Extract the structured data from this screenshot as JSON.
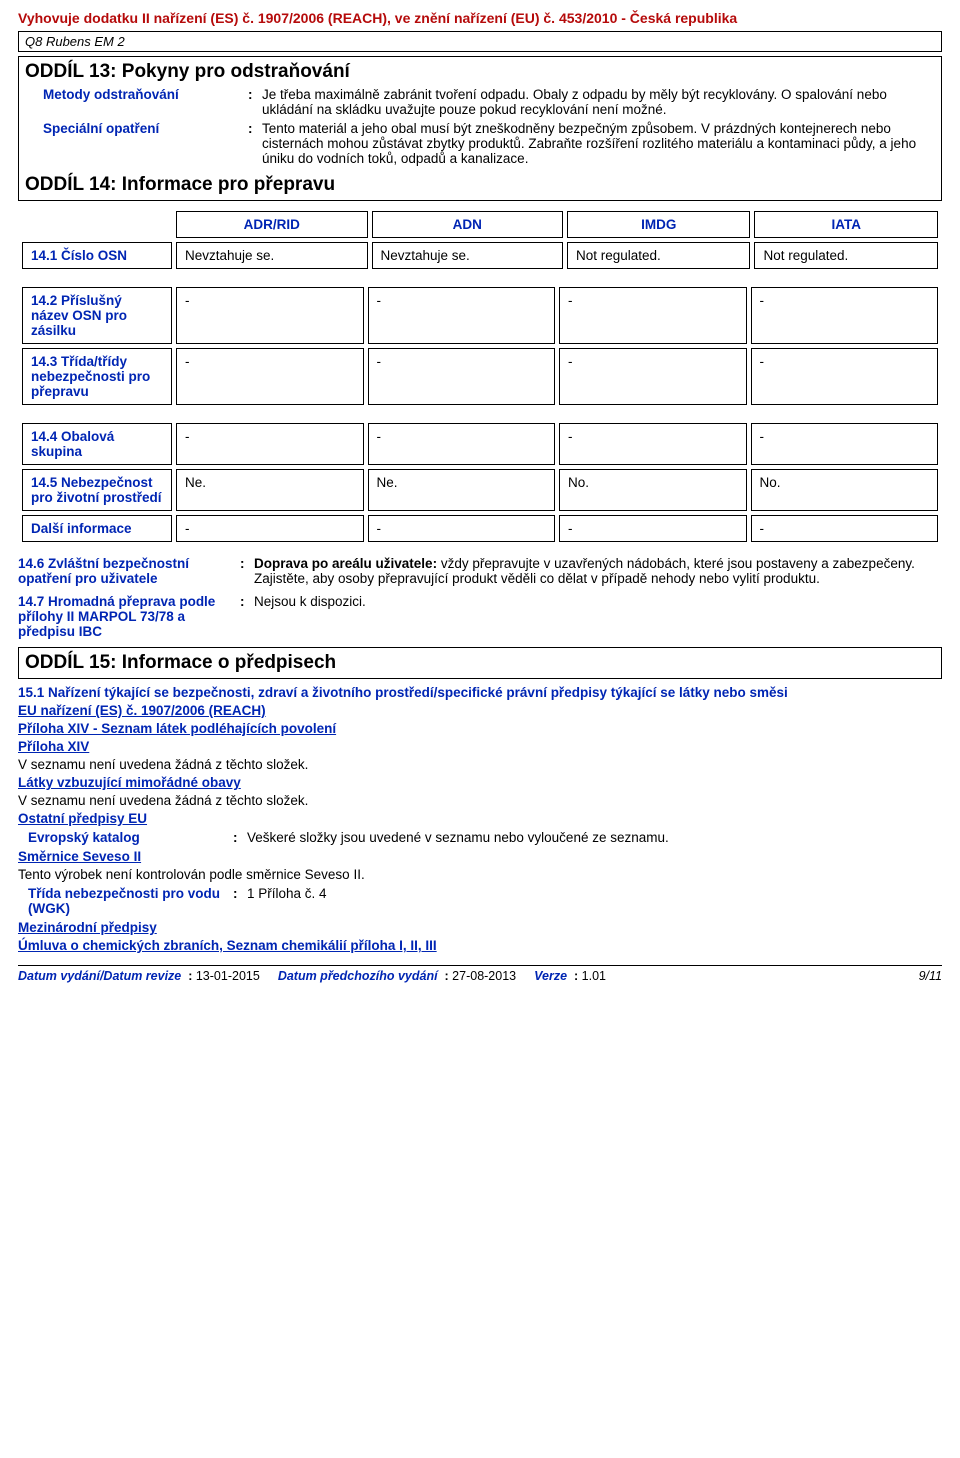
{
  "header": "Vyhovuje dodatku II nařízení (ES) č. 1907/2006 (REACH), ve znění nařízení (EU) č. 453/2010 - Česká republika",
  "product": "Q8 Rubens EM 2",
  "section13": {
    "title": "ODDÍL 13: Pokyny pro odstraňování",
    "rows": [
      {
        "label": "Metody odstraňování",
        "value": "Je třeba maximálně zabránit tvoření odpadu. Obaly z odpadu by měly být recyklovány. O spalování nebo ukládání na skládku uvažujte pouze pokud recyklování není možné."
      },
      {
        "label": "Speciální opatření",
        "value": "Tento materiál a jeho obal musí být zneškodněny bezpečným způsobem. V prázdných kontejnerech nebo cisternách mohou zůstávat zbytky produktů. Zabraňte rozšíření rozlitého materiálu a kontaminaci půdy, a jeho úniku do vodních toků, odpadů a kanalizace."
      }
    ]
  },
  "section14": {
    "title": "ODDÍL 14: Informace pro přepravu",
    "columns": [
      "ADR/RID",
      "ADN",
      "IMDG",
      "IATA"
    ],
    "rows1": [
      {
        "label": "14.1 Číslo OSN",
        "cells": [
          "Nevztahuje se.",
          "Nevztahuje se.",
          "Not regulated.",
          "Not regulated."
        ]
      }
    ],
    "rows2": [
      {
        "label": "14.2 Příslušný název OSN pro zásilku",
        "cells": [
          "-",
          "-",
          "-",
          "-"
        ]
      },
      {
        "label": "14.3 Třída/třídy nebezpečnosti pro přepravu",
        "cells": [
          "-",
          "-",
          "-",
          "-"
        ]
      }
    ],
    "rows3": [
      {
        "label": "14.4 Obalová skupina",
        "cells": [
          "-",
          "-",
          "-",
          "-"
        ]
      },
      {
        "label": "14.5 Nebezpečnost pro životní prostředí",
        "cells": [
          "Ne.",
          "Ne.",
          "No.",
          "No."
        ]
      },
      {
        "label": "Další informace",
        "cells": [
          "-",
          "-",
          "-",
          "-"
        ]
      }
    ],
    "extra": [
      {
        "label": "14.6 Zvláštní bezpečnostní opatření pro uživatele",
        "bold_prefix": "Doprava po areálu uživatele:",
        "value": " vždy přepravujte v uzavřených nádobách, které jsou postaveny a zabezpečeny. Zajistěte, aby osoby přepravující produkt věděli co dělat v případě nehody nebo vylití produktu."
      },
      {
        "label": "14.7 Hromadná přeprava podle přílohy II MARPOL 73/78 a předpisu IBC",
        "value": "Nejsou k dispozici."
      }
    ]
  },
  "section15": {
    "title": "ODDÍL 15: Informace o předpisech",
    "heading": "15.1 Nařízení týkající se bezpečnosti, zdraví a životního prostředí/specifické právní předpisy týkající se látky nebo směsi",
    "reach": "EU nařízení (ES) č. 1907/2006 (REACH)",
    "annex_list": "Příloha XIV - Seznam látek podléhajících povolení",
    "annex": "Příloha XIV",
    "none1": "V seznamu není uvedena žádná z těchto složek.",
    "svhc": "Látky vzbuzující mimořádné obavy",
    "none2": "V seznamu není uvedena žádná z těchto složek.",
    "other_eu": "Ostatní předpisy EU",
    "eu_cat_label": "Evropský katalog",
    "eu_cat_value": "Veškeré složky jsou uvedené v seznamu nebo vyloučené ze seznamu.",
    "seveso": "Směrnice Seveso II",
    "seveso_text": "Tento výrobek není kontrolován podle směrnice Seveso II.",
    "wgk_label": "Třída nebezpečnosti pro vodu (WGK)",
    "wgk_value": "1 Příloha č. 4",
    "intl": "Mezinárodní předpisy",
    "cwc": "Úmluva o chemických zbraních, Seznam chemikálií příloha I, II, III"
  },
  "footer": {
    "l1": "Datum vydání/Datum revize",
    "v1": "13-01-2015",
    "l2": "Datum předchozího vydání",
    "v2": "27-08-2013",
    "l3": "Verze",
    "v3": "1.01",
    "page": "9/11"
  }
}
